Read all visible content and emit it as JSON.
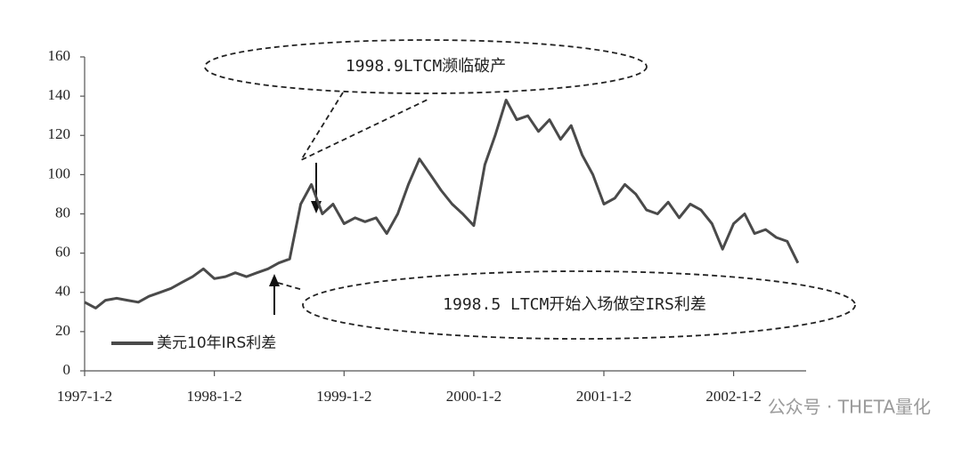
{
  "chart_data": {
    "type": "line",
    "x": [
      "1997-1-2",
      "1997-2-2",
      "1997-3-2",
      "1997-4-2",
      "1997-5-2",
      "1997-6-2",
      "1997-7-2",
      "1997-8-2",
      "1997-9-2",
      "1997-10-2",
      "1997-11-2",
      "1997-12-2",
      "1998-1-2",
      "1998-2-2",
      "1998-3-2",
      "1998-4-2",
      "1998-5-2",
      "1998-6-2",
      "1998-7-2",
      "1998-8-2",
      "1998-9-2",
      "1998-10-2",
      "1998-11-2",
      "1998-12-2",
      "1999-1-2",
      "1999-2-2",
      "1999-3-2",
      "1999-4-2",
      "1999-5-2",
      "1999-6-2",
      "1999-7-2",
      "1999-8-2",
      "1999-9-2",
      "1999-10-2",
      "1999-11-2",
      "1999-12-2",
      "2000-1-2",
      "2000-2-2",
      "2000-3-2",
      "2000-4-2",
      "2000-5-2",
      "2000-6-2",
      "2000-7-2",
      "2000-8-2",
      "2000-9-2",
      "2000-10-2",
      "2000-11-2",
      "2000-12-2",
      "2001-1-2",
      "2001-2-2",
      "2001-3-2",
      "2001-4-2",
      "2001-5-2",
      "2001-6-2",
      "2001-7-2",
      "2001-8-2",
      "2001-9-2",
      "2001-10-2",
      "2001-11-2",
      "2001-12-2",
      "2002-1-2",
      "2002-2-2",
      "2002-3-2",
      "2002-4-2",
      "2002-5-2",
      "2002-6-2",
      "2002-7-2"
    ],
    "series": [
      {
        "name": "美元10年IRS利差",
        "color": "#4a4a4a",
        "values": [
          35,
          32,
          36,
          37,
          36,
          35,
          38,
          40,
          42,
          45,
          48,
          52,
          47,
          48,
          50,
          48,
          50,
          52,
          55,
          57,
          85,
          95,
          80,
          85,
          75,
          78,
          76,
          78,
          70,
          80,
          95,
          108,
          100,
          92,
          85,
          80,
          74,
          105,
          120,
          138,
          128,
          130,
          122,
          128,
          118,
          125,
          110,
          100,
          85,
          88,
          95,
          90,
          82,
          80,
          86,
          78,
          85,
          82,
          75,
          62,
          75,
          80,
          70,
          72,
          68,
          66,
          55
        ]
      }
    ],
    "xlim": [
      "1997-1-2",
      "2002-7-20"
    ],
    "xticks": [
      "1997-1-2",
      "1998-1-2",
      "1999-1-2",
      "2000-1-2",
      "2001-1-2",
      "2002-1-2"
    ],
    "ylim": [
      0,
      160
    ],
    "yticks": [
      0,
      20,
      40,
      60,
      80,
      100,
      120,
      140,
      160
    ],
    "annotations": [
      "1998.9LTCM濒临破产",
      "1998.5 LTCM开始入场做空IRS利差"
    ],
    "watermark": "公众号 · THETA量化"
  }
}
